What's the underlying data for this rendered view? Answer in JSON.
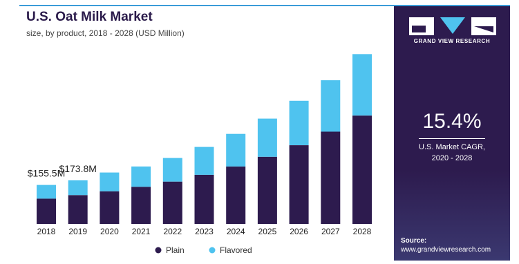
{
  "header": {
    "title": "U.S. Oat Milk Market",
    "subtitle": "size, by product, 2018 - 2028 (USD Million)"
  },
  "colors": {
    "plain": "#2d1b4e",
    "flavored": "#4fc3ef",
    "panel": "#2d1b4e",
    "accent_line": "#3a9bd8"
  },
  "chart_data": {
    "type": "bar",
    "stacked": true,
    "title": "U.S. Oat Milk Market",
    "subtitle": "size, by product, 2018 - 2028 (USD Million)",
    "xlabel": "",
    "ylabel": "",
    "categories": [
      "2018",
      "2019",
      "2020",
      "2021",
      "2022",
      "2023",
      "2024",
      "2025",
      "2026",
      "2027",
      "2028"
    ],
    "series": [
      {
        "name": "Plain",
        "values": [
          101,
          115,
          130,
          148,
          169,
          196,
          229,
          268,
          314,
          368,
          432
        ]
      },
      {
        "name": "Flavored",
        "values": [
          54.5,
          58.8,
          75,
          81,
          94,
          111,
          130,
          152,
          177,
          205,
          245
        ]
      }
    ],
    "ylim": [
      0,
      700
    ],
    "grid": false,
    "legend": "bottom",
    "annotations": [
      {
        "category": "2018",
        "text": "$155.5M"
      },
      {
        "category": "2019",
        "text": "$173.8M"
      }
    ]
  },
  "side_panel": {
    "brand": "GRAND VIEW RESEARCH",
    "cagr_value": "15.4%",
    "cagr_label": "U.S. Market CAGR,",
    "cagr_period": "2020 - 2028",
    "source_label": "Source:",
    "source_url": "www.grandviewresearch.com"
  }
}
